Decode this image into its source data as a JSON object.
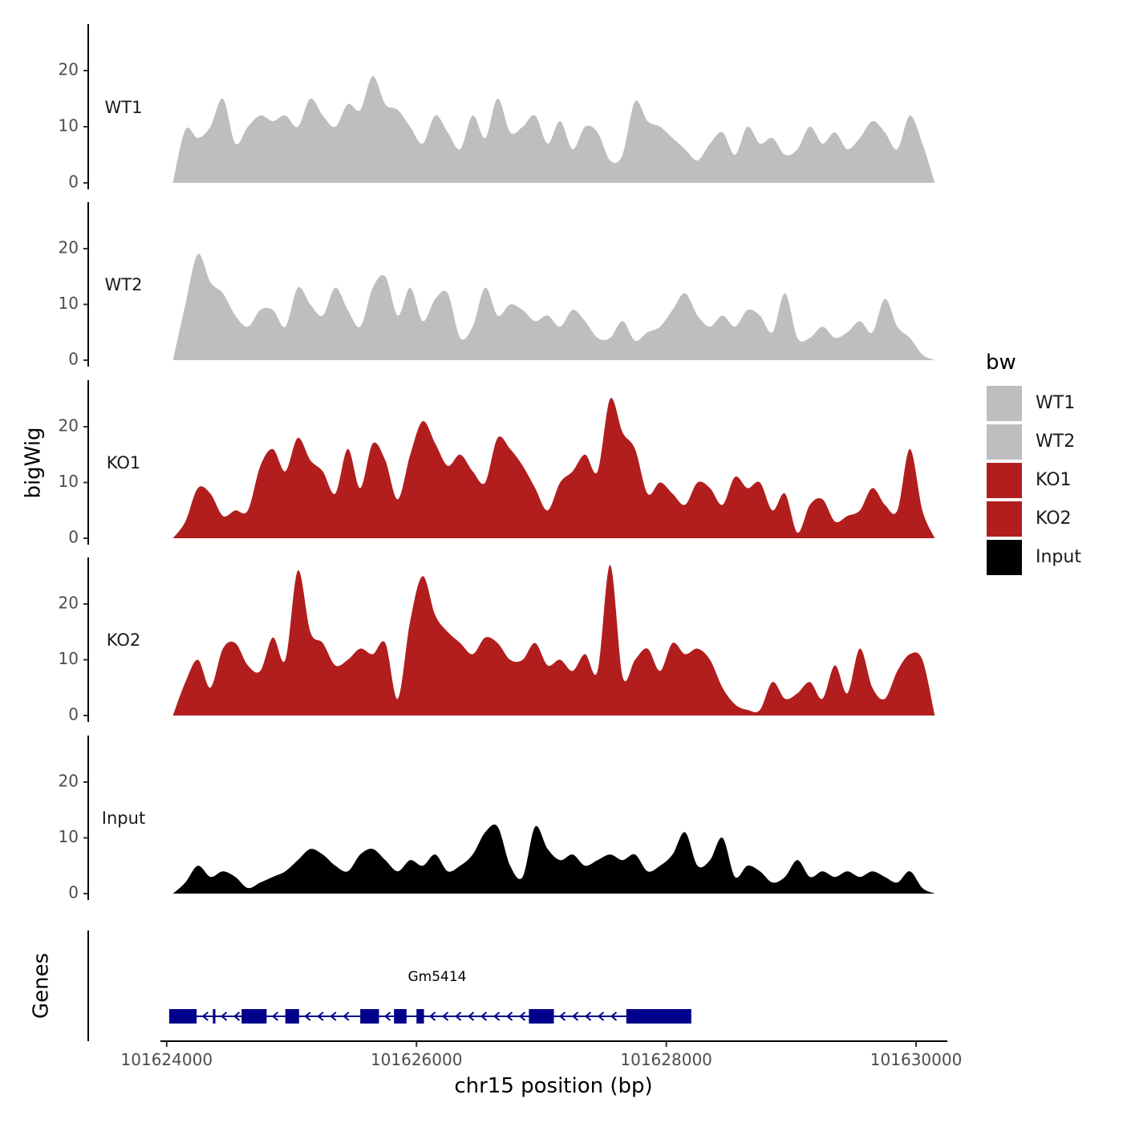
{
  "chart_data": {
    "type": "area",
    "xlabel": "chr15 position (bp)",
    "ylabel": "bigWig",
    "xlim": [
      101623950,
      101630250
    ],
    "ylim": [
      0,
      28
    ],
    "y_ticks": [
      0,
      10,
      20
    ],
    "x_ticks": [
      101624000,
      101626000,
      101628000,
      101630000
    ],
    "x_tick_labels": [
      "101624000",
      "101626000",
      "101628000",
      "101630000"
    ],
    "legend": {
      "title": "bw",
      "entries": [
        {
          "label": "WT1",
          "color": "#bebebe"
        },
        {
          "label": "WT2",
          "color": "#bebebe"
        },
        {
          "label": "KO1",
          "color": "#b21e1e"
        },
        {
          "label": "KO2",
          "color": "#b21e1e"
        },
        {
          "label": "Input",
          "color": "#000000"
        }
      ]
    },
    "series": [
      {
        "name": "WT1",
        "color": "#bebebe",
        "x": [
          101624050,
          101624150,
          101624250,
          101624350,
          101624450,
          101624550,
          101624650,
          101624750,
          101624850,
          101624950,
          101625050,
          101625150,
          101625250,
          101625350,
          101625450,
          101625550,
          101625650,
          101625750,
          101625850,
          101625950,
          101626050,
          101626150,
          101626250,
          101626350,
          101626450,
          101626550,
          101626650,
          101626750,
          101626850,
          101626950,
          101627050,
          101627150,
          101627250,
          101627350,
          101627450,
          101627550,
          101627650,
          101627750,
          101627850,
          101627950,
          101628050,
          101628150,
          101628250,
          101628350,
          101628450,
          101628550,
          101628650,
          101628750,
          101628850,
          101628950,
          101629050,
          101629150,
          101629250,
          101629350,
          101629450,
          101629550,
          101629650,
          101629750,
          101629850,
          101629950,
          101630050,
          101630150
        ],
        "values": [
          0,
          9.5,
          8,
          10,
          15,
          7,
          10,
          12,
          11,
          12,
          10,
          15,
          12,
          10,
          14,
          13,
          19,
          14,
          13,
          10,
          7,
          12,
          9,
          6,
          12,
          8,
          15,
          9,
          10,
          12,
          7,
          11,
          6,
          10,
          9,
          4,
          5,
          14.5,
          11,
          10,
          8,
          6,
          4,
          7,
          9,
          5,
          10,
          7,
          8,
          5,
          6,
          10,
          7,
          9,
          6,
          8,
          11,
          9,
          6,
          12,
          7,
          0
        ]
      },
      {
        "name": "WT2",
        "color": "#bebebe",
        "x": [
          101624050,
          101624150,
          101624250,
          101624350,
          101624450,
          101624550,
          101624650,
          101624750,
          101624850,
          101624950,
          101625050,
          101625150,
          101625250,
          101625350,
          101625450,
          101625550,
          101625650,
          101625750,
          101625850,
          101625950,
          101626050,
          101626150,
          101626250,
          101626350,
          101626450,
          101626550,
          101626650,
          101626750,
          101626850,
          101626950,
          101627050,
          101627150,
          101627250,
          101627350,
          101627450,
          101627550,
          101627650,
          101627750,
          101627850,
          101627950,
          101628050,
          101628150,
          101628250,
          101628350,
          101628450,
          101628550,
          101628650,
          101628750,
          101628850,
          101628950,
          101629050,
          101629150,
          101629250,
          101629350,
          101629450,
          101629550,
          101629650,
          101629750,
          101629850,
          101629950,
          101630050,
          101630150
        ],
        "values": [
          0,
          10,
          19,
          14,
          12,
          8,
          6,
          9,
          9,
          6,
          13,
          10,
          8,
          13,
          9,
          6,
          13,
          15,
          8,
          13,
          7,
          11,
          12,
          4,
          6,
          13,
          8,
          10,
          9,
          7,
          8,
          6,
          9,
          7,
          4,
          4,
          7,
          3.5,
          5,
          6,
          9,
          12,
          8,
          6,
          8,
          6,
          9,
          8,
          5,
          12,
          4,
          4,
          6,
          4,
          5,
          7,
          5,
          11,
          6,
          4,
          1,
          0
        ]
      },
      {
        "name": "KO1",
        "color": "#b21e1e",
        "x": [
          101624050,
          101624150,
          101624250,
          101624350,
          101624450,
          101624550,
          101624650,
          101624750,
          101624850,
          101624950,
          101625050,
          101625150,
          101625250,
          101625350,
          101625450,
          101625550,
          101625650,
          101625750,
          101625850,
          101625950,
          101626050,
          101626150,
          101626250,
          101626350,
          101626450,
          101626550,
          101626650,
          101626750,
          101626850,
          101626950,
          101627050,
          101627150,
          101627250,
          101627350,
          101627450,
          101627550,
          101627650,
          101627750,
          101627850,
          101627950,
          101628050,
          101628150,
          101628250,
          101628350,
          101628450,
          101628550,
          101628650,
          101628750,
          101628850,
          101628950,
          101629050,
          101629150,
          101629250,
          101629350,
          101629450,
          101629550,
          101629650,
          101629750,
          101629850,
          101629950,
          101630050,
          101630150
        ],
        "values": [
          0,
          3,
          9,
          8,
          4,
          5,
          5,
          13,
          16,
          12,
          18,
          14,
          12,
          8,
          16,
          9,
          17,
          14,
          7,
          15,
          21,
          17,
          13,
          15,
          12,
          10,
          18,
          16,
          13,
          9,
          5,
          10,
          12,
          15,
          12,
          25,
          19,
          16,
          8,
          10,
          8,
          6,
          10,
          9,
          6,
          11,
          9,
          10,
          5,
          8,
          1,
          6,
          7,
          3,
          4,
          5,
          9,
          6,
          5,
          16,
          5,
          0
        ]
      },
      {
        "name": "KO2",
        "color": "#b21e1e",
        "x": [
          101624050,
          101624150,
          101624250,
          101624350,
          101624450,
          101624550,
          101624650,
          101624750,
          101624850,
          101624950,
          101625050,
          101625150,
          101625250,
          101625350,
          101625450,
          101625550,
          101625650,
          101625750,
          101625850,
          101625950,
          101626050,
          101626150,
          101626250,
          101626350,
          101626450,
          101626550,
          101626650,
          101626750,
          101626850,
          101626950,
          101627050,
          101627150,
          101627250,
          101627350,
          101627450,
          101627550,
          101627650,
          101627750,
          101627850,
          101627950,
          101628050,
          101628150,
          101628250,
          101628350,
          101628450,
          101628550,
          101628650,
          101628750,
          101628850,
          101628950,
          101629050,
          101629150,
          101629250,
          101629350,
          101629450,
          101629550,
          101629650,
          101629750,
          101629850,
          101629950,
          101630050,
          101630150
        ],
        "values": [
          0,
          6,
          10,
          5,
          12,
          13,
          9,
          8,
          14,
          10,
          26,
          15,
          13,
          9,
          10,
          12,
          11,
          13,
          3,
          17,
          25,
          18,
          15,
          13,
          11,
          14,
          13,
          10,
          10,
          13,
          9,
          10,
          8,
          11,
          8,
          27,
          7,
          10,
          12,
          8,
          13,
          11,
          12,
          10,
          5,
          2,
          1,
          1,
          6,
          3,
          4,
          6,
          3,
          9,
          4,
          12,
          5,
          3,
          8,
          11,
          10,
          0
        ]
      },
      {
        "name": "Input",
        "color": "#000000",
        "x": [
          101624050,
          101624150,
          101624250,
          101624350,
          101624450,
          101624550,
          101624650,
          101624750,
          101624850,
          101624950,
          101625050,
          101625150,
          101625250,
          101625350,
          101625450,
          101625550,
          101625650,
          101625750,
          101625850,
          101625950,
          101626050,
          101626150,
          101626250,
          101626350,
          101626450,
          101626550,
          101626650,
          101626750,
          101626850,
          101626950,
          101627050,
          101627150,
          101627250,
          101627350,
          101627450,
          101627550,
          101627650,
          101627750,
          101627850,
          101627950,
          101628050,
          101628150,
          101628250,
          101628350,
          101628450,
          101628550,
          101628650,
          101628750,
          101628850,
          101628950,
          101629050,
          101629150,
          101629250,
          101629350,
          101629450,
          101629550,
          101629650,
          101629750,
          101629850,
          101629950,
          101630050,
          101630150
        ],
        "values": [
          0,
          2,
          5,
          3,
          4,
          3,
          1,
          2,
          3,
          4,
          6,
          8,
          7,
          5,
          4,
          7,
          8,
          6,
          4,
          6,
          5,
          7,
          4,
          5,
          7,
          11,
          12,
          5,
          3,
          12,
          8,
          6,
          7,
          5,
          6,
          7,
          6,
          7,
          4,
          5,
          7,
          11,
          5,
          6,
          10,
          3,
          5,
          4,
          2,
          3,
          6,
          3,
          4,
          3,
          4,
          3,
          4,
          3,
          2,
          4,
          1,
          0
        ]
      }
    ],
    "genes": {
      "title": "Genes",
      "name": "Gm5414",
      "strand": "-",
      "color": "#00008b",
      "start": 101624020,
      "end": 101628200,
      "exons": [
        [
          101624020,
          101624240
        ],
        [
          101624370,
          101624390
        ],
        [
          101624600,
          101624800
        ],
        [
          101624950,
          101625060
        ],
        [
          101625550,
          101625700
        ],
        [
          101625820,
          101625920
        ],
        [
          101626000,
          101626060
        ],
        [
          101626900,
          101627100
        ],
        [
          101627680,
          101628200
        ]
      ]
    }
  }
}
